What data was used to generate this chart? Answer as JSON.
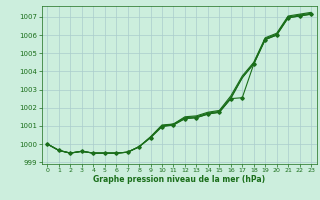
{
  "x": [
    0,
    1,
    2,
    3,
    4,
    5,
    6,
    7,
    8,
    9,
    10,
    11,
    12,
    13,
    14,
    15,
    16,
    17,
    18,
    19,
    20,
    21,
    22,
    23
  ],
  "y_line1": [
    1000.0,
    999.65,
    999.5,
    999.6,
    999.5,
    999.5,
    999.5,
    999.55,
    999.85,
    1000.4,
    1001.05,
    1001.1,
    1001.5,
    1001.55,
    1001.75,
    1001.85,
    1002.65,
    1003.75,
    1004.5,
    1005.85,
    1006.1,
    1007.05,
    1007.15,
    1007.25
  ],
  "y_line2": [
    1000.0,
    999.65,
    999.5,
    999.6,
    999.5,
    999.5,
    999.5,
    999.55,
    999.85,
    1000.38,
    1001.0,
    1001.1,
    1001.45,
    1001.5,
    1001.7,
    1001.8,
    1002.55,
    1003.65,
    1004.45,
    1005.8,
    1006.05,
    1007.0,
    1007.1,
    1007.2
  ],
  "y_line3": [
    1000.0,
    999.65,
    999.5,
    999.6,
    999.5,
    999.5,
    999.5,
    999.55,
    999.85,
    1000.36,
    1001.0,
    1001.05,
    1001.4,
    1001.45,
    1001.65,
    1001.75,
    1002.5,
    1003.65,
    1004.4,
    1005.75,
    1006.0,
    1006.95,
    1007.05,
    1007.15
  ],
  "y_marker": [
    1000.0,
    999.65,
    999.5,
    999.6,
    999.5,
    999.5,
    999.5,
    999.55,
    999.85,
    1000.34,
    1000.95,
    1001.05,
    1001.4,
    1001.45,
    1001.65,
    1001.75,
    1002.5,
    1002.55,
    1004.4,
    1005.75,
    1006.0,
    1006.95,
    1007.05,
    1007.15
  ],
  "ylim": [
    998.9,
    1007.6
  ],
  "xlim": [
    -0.5,
    23.5
  ],
  "yticks": [
    999,
    1000,
    1001,
    1002,
    1003,
    1004,
    1005,
    1006,
    1007
  ],
  "xticks": [
    0,
    1,
    2,
    3,
    4,
    5,
    6,
    7,
    8,
    9,
    10,
    11,
    12,
    13,
    14,
    15,
    16,
    17,
    18,
    19,
    20,
    21,
    22,
    23
  ],
  "xlabel": "Graphe pression niveau de la mer (hPa)",
  "bg_color": "#cceedd",
  "grid_color": "#aacccc",
  "line_color": "#1a6e1a"
}
